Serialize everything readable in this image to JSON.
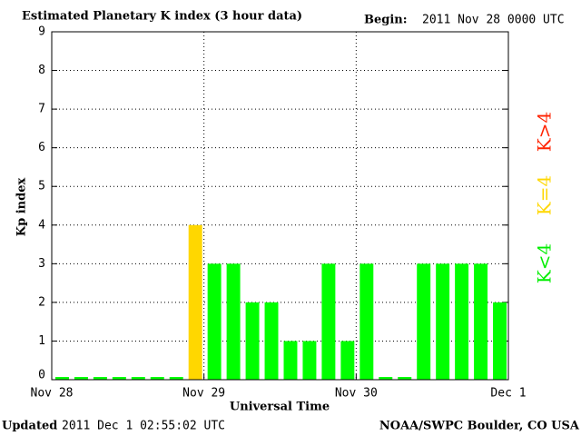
{
  "chart_data": {
    "type": "bar",
    "title": "Estimated Planetary K index (3 hour data)",
    "begin_label": "Begin:",
    "begin": "2011 Nov 28 0000 UTC",
    "x_label": "Universal Time",
    "y_label": "Kp index",
    "updated_label": "Updated",
    "updated": "2011 Dec  1 02:55:02 UTC",
    "source": "NOAA/SWPC Boulder, CO USA",
    "x": [
      0,
      3,
      6,
      9,
      12,
      15,
      18,
      21,
      24,
      27,
      30,
      33,
      36,
      39,
      42,
      45,
      48,
      51,
      54,
      57,
      60,
      63,
      66,
      69
    ],
    "values": [
      0,
      0,
      0,
      0,
      0,
      0,
      0,
      4,
      3,
      3,
      2,
      2,
      1,
      1,
      3,
      1,
      3,
      0,
      0,
      3,
      3,
      3,
      3,
      2
    ],
    "colors": [
      "#00ff00",
      "#00ff00",
      "#00ff00",
      "#00ff00",
      "#00ff00",
      "#00ff00",
      "#00ff00",
      "#ffd700",
      "#00ff00",
      "#00ff00",
      "#00ff00",
      "#00ff00",
      "#00ff00",
      "#00ff00",
      "#00ff00",
      "#00ff00",
      "#00ff00",
      "#00ff00",
      "#00ff00",
      "#00ff00",
      "#00ff00",
      "#00ff00",
      "#00ff00",
      "#00ff00"
    ],
    "legend": [
      {
        "name": "K<4",
        "color": "#00ee00"
      },
      {
        "name": "K=4",
        "color": "#ffd700"
      },
      {
        "name": "K>4",
        "color": "#ff2200"
      }
    ],
    "xlim": [
      0,
      72
    ],
    "xticks": [
      {
        "value": 0,
        "label": "Nov 28"
      },
      {
        "value": 24,
        "label": "Nov 29"
      },
      {
        "value": 48,
        "label": "Nov 30"
      },
      {
        "value": 72,
        "label": "Dec 1"
      }
    ],
    "ylim": [
      0,
      9
    ],
    "yticks": [
      0,
      1,
      2,
      3,
      4,
      5,
      6,
      7,
      8,
      9
    ],
    "grid": true
  }
}
